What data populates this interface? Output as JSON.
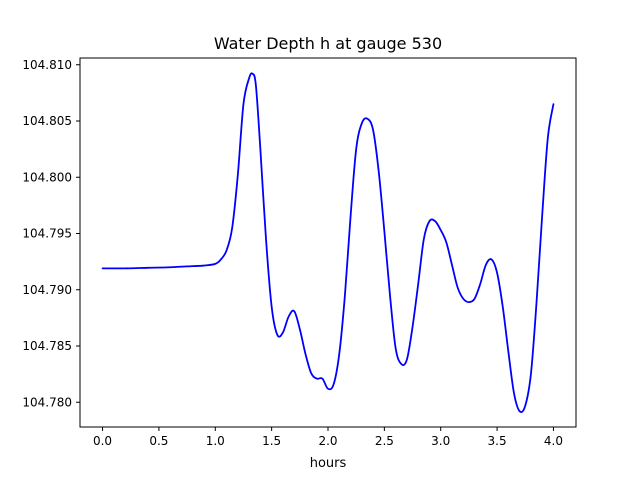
{
  "chart_data": {
    "type": "line",
    "title": "Water Depth h at gauge 530",
    "xlabel": "hours",
    "ylabel": "",
    "xlim": [
      -0.2,
      4.2
    ],
    "ylim": [
      104.7778,
      104.8106
    ],
    "x_ticks": [
      0.0,
      0.5,
      1.0,
      1.5,
      2.0,
      2.5,
      3.0,
      3.5,
      4.0
    ],
    "x_tick_labels": [
      "0.0",
      "0.5",
      "1.0",
      "1.5",
      "2.0",
      "2.5",
      "3.0",
      "3.5",
      "4.0"
    ],
    "y_ticks": [
      104.78,
      104.785,
      104.79,
      104.795,
      104.8,
      104.805,
      104.81
    ],
    "y_tick_labels": [
      "104.780",
      "104.785",
      "104.790",
      "104.795",
      "104.800",
      "104.805",
      "104.810"
    ],
    "grid": false,
    "legend": "none",
    "series": [
      {
        "color": "#0000ff",
        "x": [
          0.0,
          0.2,
          0.4,
          0.6,
          0.8,
          0.9,
          1.0,
          1.05,
          1.1,
          1.15,
          1.2,
          1.25,
          1.3,
          1.33,
          1.36,
          1.4,
          1.45,
          1.5,
          1.55,
          1.6,
          1.65,
          1.7,
          1.75,
          1.8,
          1.85,
          1.9,
          1.95,
          2.0,
          2.05,
          2.1,
          2.15,
          2.2,
          2.25,
          2.3,
          2.35,
          2.4,
          2.45,
          2.5,
          2.55,
          2.6,
          2.65,
          2.7,
          2.75,
          2.8,
          2.85,
          2.9,
          2.95,
          3.0,
          3.05,
          3.1,
          3.15,
          3.2,
          3.25,
          3.3,
          3.35,
          3.4,
          3.45,
          3.5,
          3.55,
          3.6,
          3.65,
          3.7,
          3.75,
          3.8,
          3.85,
          3.9,
          3.95,
          4.0
        ],
        "y": [
          104.7919,
          104.7919,
          104.79195,
          104.792,
          104.7921,
          104.79215,
          104.7923,
          104.7927,
          104.7935,
          104.7955,
          104.8002,
          104.8065,
          104.8088,
          104.8092,
          104.8082,
          104.8025,
          104.7945,
          104.7885,
          104.786,
          104.7862,
          104.7876,
          104.7881,
          104.7865,
          104.7843,
          104.7826,
          104.7821,
          104.7821,
          104.7812,
          104.7816,
          104.7843,
          104.7895,
          104.7965,
          104.8025,
          104.8048,
          104.8052,
          104.8042,
          104.8005,
          104.7952,
          104.7895,
          104.7848,
          104.7834,
          104.7838,
          104.7867,
          104.7905,
          104.7945,
          104.7961,
          104.7961,
          104.7953,
          104.7942,
          104.7922,
          104.7902,
          104.7892,
          104.7889,
          104.7892,
          104.7905,
          104.7922,
          104.7927,
          104.7915,
          104.7885,
          104.7845,
          104.7808,
          104.7792,
          104.7797,
          104.7825,
          104.7889,
          104.7966,
          104.8035,
          104.8065
        ]
      }
    ]
  }
}
